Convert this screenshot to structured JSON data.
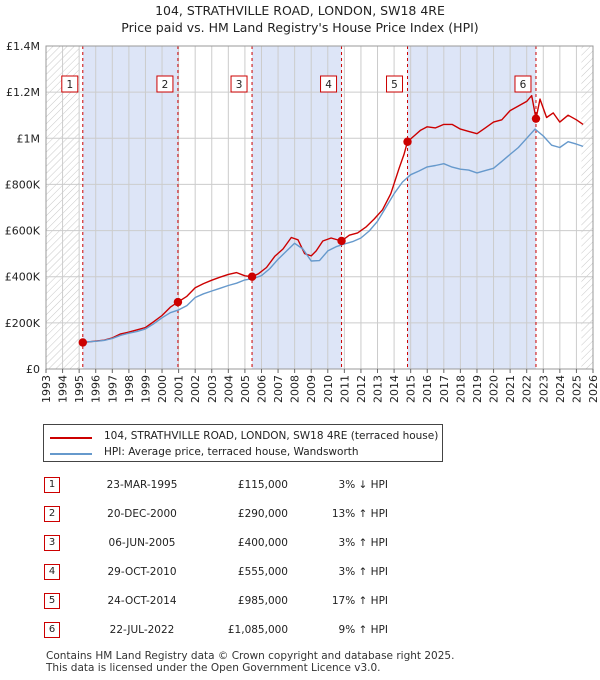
{
  "title_line1": "104, STRATHVILLE ROAD, LONDON, SW18 4RE",
  "title_line2": "Price paid vs. HM Land Registry's House Price Index (HPI)",
  "colors": {
    "property": "#cc0000",
    "hpi": "#6699cc",
    "shade": "#dde5f7",
    "grid": "#cccccc"
  },
  "chart_data": {
    "type": "line",
    "title": "104, STRATHVILLE ROAD, LONDON, SW18 4RE",
    "subtitle": "Price paid vs. HM Land Registry's House Price Index (HPI)",
    "xlim": [
      1993,
      2026
    ],
    "ylim": [
      0,
      1400000
    ],
    "x_ticks": [
      "1993",
      "1994",
      "1995",
      "1996",
      "1997",
      "1998",
      "1999",
      "2000",
      "2001",
      "2002",
      "2003",
      "2004",
      "2005",
      "2006",
      "2007",
      "2008",
      "2009",
      "2010",
      "2011",
      "2012",
      "2013",
      "2014",
      "2015",
      "2016",
      "2017",
      "2018",
      "2019",
      "2020",
      "2021",
      "2022",
      "2023",
      "2024",
      "2025",
      "2026"
    ],
    "y_ticks": [
      {
        "value": 0,
        "label": "£0"
      },
      {
        "value": 200000,
        "label": "£200K"
      },
      {
        "value": 400000,
        "label": "£400K"
      },
      {
        "value": 600000,
        "label": "£600K"
      },
      {
        "value": 800000,
        "label": "£800K"
      },
      {
        "value": 1000000,
        "label": "£1M"
      },
      {
        "value": 1200000,
        "label": "£1.2M"
      },
      {
        "value": 1400000,
        "label": "£1.4M"
      }
    ],
    "series": [
      {
        "name": "104, STRATHVILLE ROAD, LONDON, SW18 4RE (terraced house)",
        "color": "#cc0000",
        "x": [
          1995.22,
          1995.6,
          1996.0,
          1996.5,
          1997.0,
          1997.5,
          1998.0,
          1998.5,
          1999.0,
          1999.5,
          2000.0,
          2000.5,
          2000.96,
          2001.5,
          2002.0,
          2002.5,
          2003.0,
          2003.5,
          2004.0,
          2004.5,
          2005.0,
          2005.43,
          2005.8,
          2006.3,
          2006.8,
          2007.3,
          2007.8,
          2008.2,
          2008.6,
          2009.0,
          2009.3,
          2009.7,
          2010.2,
          2010.83,
          2011.3,
          2011.8,
          2012.3,
          2012.8,
          2013.3,
          2013.8,
          2014.3,
          2014.6,
          2014.81,
          2015.2,
          2015.6,
          2016.0,
          2016.5,
          2017.0,
          2017.5,
          2018.0,
          2018.5,
          2019.0,
          2019.5,
          2020.0,
          2020.5,
          2021.0,
          2021.5,
          2022.0,
          2022.3,
          2022.56,
          2022.8,
          2023.2,
          2023.6,
          2024.0,
          2024.5,
          2025.0,
          2025.4
        ],
        "y": [
          115000,
          118000,
          121000,
          125000,
          135000,
          152000,
          160000,
          170000,
          180000,
          205000,
          232000,
          268000,
          290000,
          315000,
          352000,
          370000,
          385000,
          398000,
          410000,
          418000,
          404000,
          400000,
          412000,
          440000,
          488000,
          520000,
          570000,
          560000,
          500000,
          490000,
          512000,
          555000,
          568000,
          555000,
          580000,
          590000,
          615000,
          650000,
          690000,
          760000,
          870000,
          930000,
          985000,
          1010000,
          1035000,
          1050000,
          1045000,
          1060000,
          1060000,
          1040000,
          1030000,
          1020000,
          1045000,
          1070000,
          1080000,
          1120000,
          1140000,
          1160000,
          1185000,
          1085000,
          1170000,
          1090000,
          1110000,
          1070000,
          1100000,
          1080000,
          1060000
        ]
      },
      {
        "name": "HPI: Average price, terraced house, Wandsworth",
        "color": "#6699cc",
        "x": [
          1995.0,
          1995.5,
          1996.0,
          1996.5,
          1997.0,
          1997.5,
          1998.0,
          1998.5,
          1999.0,
          1999.5,
          2000.0,
          2000.5,
          2001.0,
          2001.5,
          2002.0,
          2002.5,
          2003.0,
          2003.5,
          2004.0,
          2004.5,
          2005.0,
          2005.5,
          2006.0,
          2006.5,
          2007.0,
          2007.5,
          2008.0,
          2008.5,
          2009.0,
          2009.5,
          2010.0,
          2010.5,
          2011.0,
          2011.5,
          2012.0,
          2012.5,
          2013.0,
          2013.5,
          2014.0,
          2014.5,
          2015.0,
          2015.5,
          2016.0,
          2016.5,
          2017.0,
          2017.5,
          2018.0,
          2018.5,
          2019.0,
          2019.5,
          2020.0,
          2020.5,
          2021.0,
          2021.5,
          2022.0,
          2022.5,
          2023.0,
          2023.5,
          2024.0,
          2024.5,
          2025.0,
          2025.4
        ],
        "y": [
          117000,
          118000,
          120000,
          124000,
          132000,
          146000,
          155000,
          163000,
          174000,
          196000,
          222000,
          244000,
          256000,
          275000,
          310000,
          326000,
          338000,
          350000,
          362000,
          372000,
          386000,
          392000,
          405000,
          435000,
          476000,
          510000,
          545000,
          520000,
          468000,
          470000,
          512000,
          530000,
          542000,
          552000,
          568000,
          598000,
          640000,
          700000,
          760000,
          810000,
          842000,
          858000,
          876000,
          882000,
          890000,
          875000,
          866000,
          862000,
          850000,
          860000,
          870000,
          900000,
          930000,
          960000,
          1000000,
          1040000,
          1010000,
          970000,
          960000,
          985000,
          975000,
          965000
        ]
      }
    ],
    "sale_markers": [
      {
        "num": "1",
        "x": 1995.22,
        "y": 115000
      },
      {
        "num": "2",
        "x": 2000.96,
        "y": 290000
      },
      {
        "num": "3",
        "x": 2005.43,
        "y": 400000
      },
      {
        "num": "4",
        "x": 2010.83,
        "y": 555000
      },
      {
        "num": "5",
        "x": 2014.81,
        "y": 985000
      },
      {
        "num": "6",
        "x": 2022.56,
        "y": 1085000
      }
    ]
  },
  "legend": {
    "property_label": "104, STRATHVILLE ROAD, LONDON, SW18 4RE (terraced house)",
    "hpi_label": "HPI: Average price, terraced house, Wandsworth"
  },
  "sales": [
    {
      "num": "1",
      "date": "23-MAR-1995",
      "price": "£115,000",
      "hpi": "3% ↓ HPI"
    },
    {
      "num": "2",
      "date": "20-DEC-2000",
      "price": "£290,000",
      "hpi": "13% ↑ HPI"
    },
    {
      "num": "3",
      "date": "06-JUN-2005",
      "price": "£400,000",
      "hpi": "3% ↑ HPI"
    },
    {
      "num": "4",
      "date": "29-OCT-2010",
      "price": "£555,000",
      "hpi": "3% ↑ HPI"
    },
    {
      "num": "5",
      "date": "24-OCT-2014",
      "price": "£985,000",
      "hpi": "17% ↑ HPI"
    },
    {
      "num": "6",
      "date": "22-JUL-2022",
      "price": "£1,085,000",
      "hpi": "9% ↑ HPI"
    }
  ],
  "footer": {
    "line1": "Contains HM Land Registry data © Crown copyright and database right 2025.",
    "line2": "This data is licensed under the Open Government Licence v3.0."
  }
}
